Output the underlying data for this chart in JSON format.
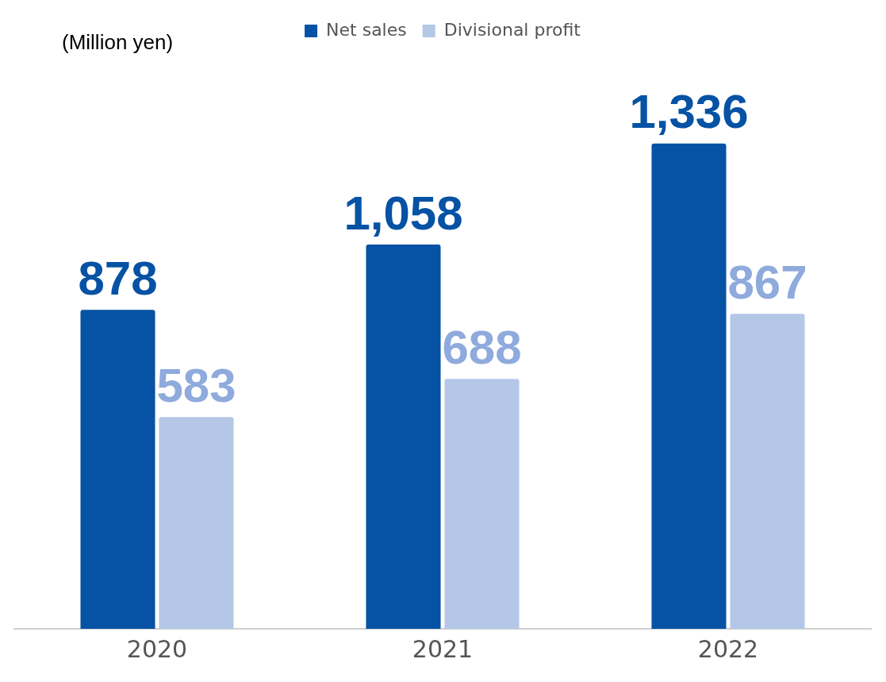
{
  "chart_data": {
    "type": "bar",
    "annotations": [
      "(Million yen)"
    ],
    "categories": [
      "2020",
      "2021",
      "2022"
    ],
    "series": [
      {
        "name": "Net sales",
        "color": "#0652a4",
        "values": [
          878,
          1058,
          1336
        ],
        "value_labels": [
          "878",
          "1,058",
          "1,336"
        ]
      },
      {
        "name": "Divisional profit",
        "color": "#b4c7e7",
        "values": [
          583,
          688,
          867
        ],
        "value_labels": [
          "583",
          "688",
          "867"
        ]
      }
    ],
    "legend": "top",
    "grid": false
  }
}
